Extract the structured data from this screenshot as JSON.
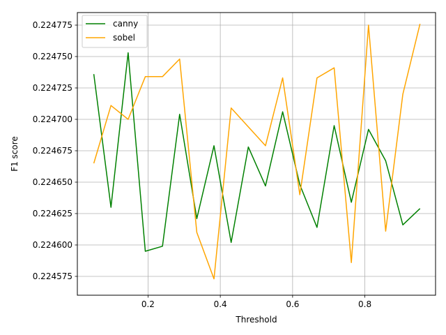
{
  "chart_data": {
    "type": "line",
    "title": "",
    "xlabel": "Threshold",
    "ylabel": "F1 score",
    "xlim": [
      0.0045,
      0.9955
    ],
    "ylim": [
      0.22456,
      0.224785
    ],
    "x_ticks": [
      0.2,
      0.4,
      0.6,
      0.8
    ],
    "x_tick_labels": [
      "0.2",
      "0.4",
      "0.6",
      "0.8"
    ],
    "y_ticks": [
      0.224575,
      0.2246,
      0.224625,
      0.22465,
      0.224675,
      0.2247,
      0.224725,
      0.22475,
      0.224775
    ],
    "y_tick_labels": [
      "0.224575",
      "0.224600",
      "0.224625",
      "0.224650",
      "0.224675",
      "0.224700",
      "0.224725",
      "0.224750",
      "0.224775"
    ],
    "grid": true,
    "legend_position": "top-left",
    "x": [
      0.05,
      0.0975,
      0.145,
      0.1925,
      0.24,
      0.2875,
      0.335,
      0.3825,
      0.43,
      0.4775,
      0.525,
      0.5725,
      0.62,
      0.6675,
      0.715,
      0.7625,
      0.81,
      0.8575,
      0.905,
      0.9525
    ],
    "series": [
      {
        "name": "canny",
        "color": "#008000",
        "values": [
          0.224736,
          0.22463,
          0.224753,
          0.224595,
          0.224599,
          0.224704,
          0.224621,
          0.224679,
          0.224602,
          0.224678,
          0.224647,
          0.224706,
          0.224648,
          0.224614,
          0.224695,
          0.224634,
          0.224692,
          0.224667,
          0.224616,
          0.224629
        ]
      },
      {
        "name": "sobel",
        "color": "#ffa500",
        "values": [
          0.224665,
          0.224711,
          0.2247,
          0.224734,
          0.224734,
          0.224748,
          0.22461,
          0.224573,
          0.224709,
          0.224694,
          0.224679,
          0.224733,
          0.22464,
          0.224733,
          0.224741,
          0.224586,
          0.224775,
          0.224611,
          0.22472,
          0.224776
        ]
      }
    ]
  }
}
